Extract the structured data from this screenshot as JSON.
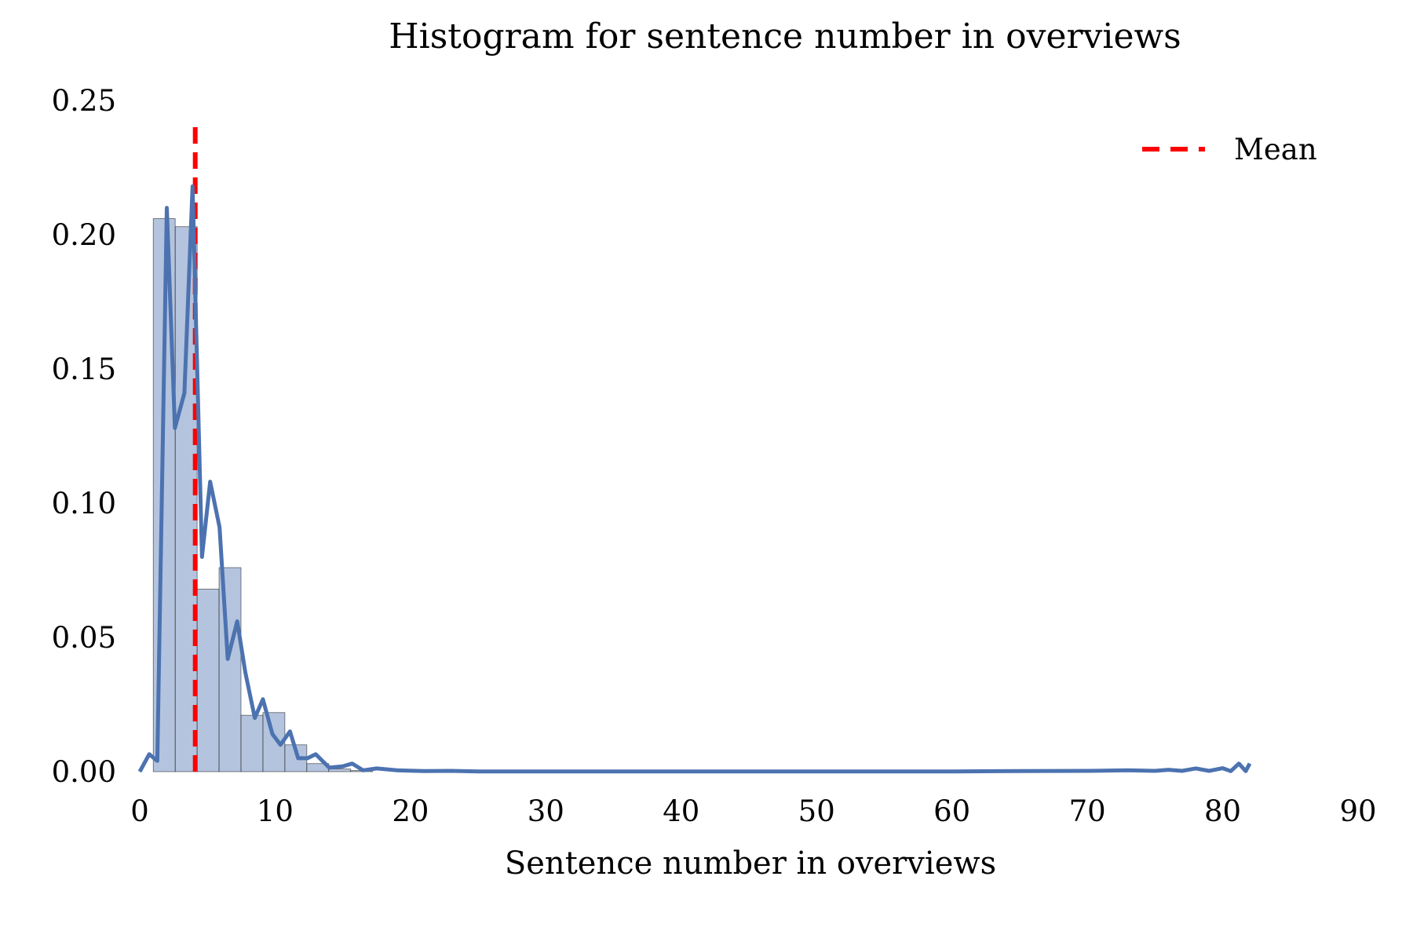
{
  "chart_data": {
    "type": "bar",
    "title": "Histogram for sentence number in overviews",
    "xlabel": "Sentence number in overviews",
    "ylabel": "",
    "xlim": [
      0,
      90
    ],
    "ylim": [
      0,
      0.25
    ],
    "xticks": [
      "0",
      "10",
      "20",
      "30",
      "40",
      "50",
      "60",
      "70",
      "80",
      "90"
    ],
    "yticks": [
      "0.00",
      "0.05",
      "0.10",
      "0.15",
      "0.20",
      "0.25"
    ],
    "grid": false,
    "legend_position": "top-right",
    "legend": [
      {
        "label": "Mean",
        "style": "dashed",
        "color": "#ff0000"
      }
    ],
    "histogram": {
      "color": "#4c72b0",
      "bin_edges": [
        1.0,
        2.62,
        4.24,
        5.86,
        7.48,
        9.1,
        10.72,
        12.34,
        13.96,
        15.58,
        17.2
      ],
      "values": [
        0.206,
        0.203,
        0.068,
        0.076,
        0.021,
        0.022,
        0.01,
        0.003,
        0.001,
        0.0004
      ]
    },
    "density_curve": {
      "color": "#4c72b0",
      "x": [
        0,
        0.7,
        1.3,
        2,
        2.6,
        3.3,
        3.9,
        4.6,
        5.2,
        5.9,
        6.5,
        7.2,
        7.8,
        8.5,
        9.1,
        9.8,
        10.4,
        11.1,
        11.7,
        12.4,
        13.0,
        14.0,
        15.0,
        15.7,
        16.5,
        17.5,
        19,
        21,
        23,
        25,
        30,
        40,
        50,
        60,
        65,
        70,
        73,
        75,
        76,
        77,
        78,
        79,
        80,
        80.6,
        81.2,
        81.7,
        82
      ],
      "y": [
        0.0,
        0.0065,
        0.004,
        0.21,
        0.128,
        0.141,
        0.218,
        0.08,
        0.108,
        0.091,
        0.042,
        0.056,
        0.037,
        0.02,
        0.027,
        0.014,
        0.01,
        0.015,
        0.005,
        0.005,
        0.0065,
        0.0015,
        0.002,
        0.003,
        0.0005,
        0.0012,
        0.0005,
        0.0002,
        0.0003,
        0.0001,
        0.0001,
        0.0001,
        0.0001,
        0.0001,
        0.0002,
        0.0003,
        0.0005,
        0.0003,
        0.0007,
        0.0003,
        0.0012,
        0.0003,
        0.0013,
        0.0002,
        0.003,
        0.0002,
        0.003
      ]
    },
    "mean_line": {
      "label": "Mean",
      "x": 4.1,
      "color": "#ff0000"
    }
  }
}
